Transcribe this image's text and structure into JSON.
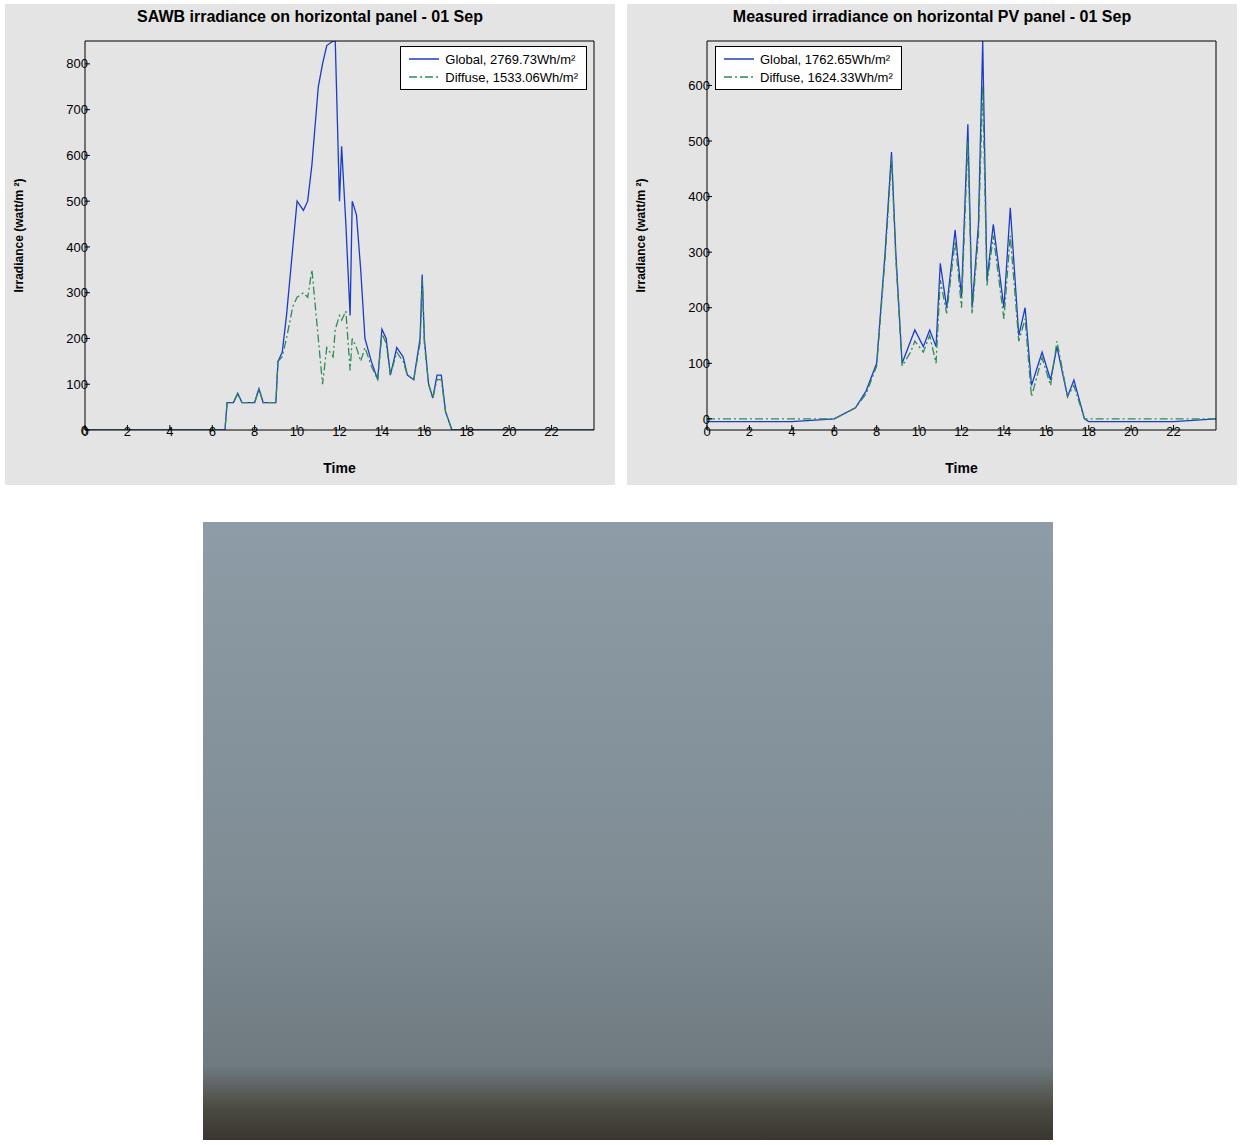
{
  "chart_data": [
    {
      "type": "line",
      "title": "SAWB irradiance on horizontal panel - 01 Sep",
      "x_label": "Time",
      "y_label": "Irradiance (watt/m ²)",
      "x": [
        0,
        6.6,
        6.7,
        7,
        7.2,
        7.4,
        8,
        8.2,
        8.4,
        9,
        9.1,
        9.3,
        9.5,
        9.8,
        10,
        10.3,
        10.5,
        10.7,
        11,
        11.2,
        11.4,
        11.7,
        11.8,
        12,
        12.1,
        12.3,
        12.5,
        12.6,
        12.8,
        13,
        13.2,
        13.5,
        13.8,
        14,
        14.2,
        14.4,
        14.7,
        15,
        15.2,
        15.5,
        15.8,
        15.9,
        16,
        16.2,
        16.4,
        16.6,
        16.8,
        17,
        17.3,
        24
      ],
      "series": [
        {
          "name": "Global, 2769.73Wh/m²",
          "color": "#1a3cc8",
          "line_style": "solid",
          "values": [
            0,
            0,
            60,
            60,
            80,
            60,
            60,
            90,
            60,
            60,
            150,
            170,
            250,
            400,
            500,
            480,
            500,
            580,
            750,
            800,
            840,
            850,
            850,
            500,
            620,
            450,
            250,
            500,
            470,
            350,
            200,
            150,
            110,
            220,
            200,
            120,
            180,
            160,
            120,
            110,
            200,
            340,
            200,
            100,
            70,
            120,
            120,
            40,
            0,
            0
          ]
        },
        {
          "name": "Diffuse, 1533.06Wh/m²",
          "color": "#2e8b57",
          "line_style": "dashdot",
          "values": [
            0,
            0,
            60,
            60,
            80,
            60,
            60,
            90,
            60,
            60,
            150,
            160,
            200,
            270,
            290,
            300,
            290,
            350,
            200,
            100,
            180,
            160,
            220,
            250,
            240,
            260,
            130,
            200,
            180,
            150,
            180,
            140,
            110,
            210,
            190,
            120,
            170,
            150,
            120,
            110,
            190,
            330,
            190,
            100,
            70,
            110,
            110,
            40,
            0,
            0
          ]
        }
      ],
      "xlim": [
        0,
        24
      ],
      "xticks": [
        0,
        2,
        4,
        6,
        8,
        10,
        12,
        14,
        16,
        18,
        20,
        22
      ],
      "ylim": [
        0,
        850
      ],
      "yticks": [
        0,
        100,
        200,
        300,
        400,
        500,
        600,
        700,
        800
      ],
      "grid": false,
      "legend": "upper right"
    },
    {
      "type": "line",
      "title": "Measured irradiance on horizontal PV panel - 01 Sep",
      "x_label": "Time",
      "y_label": "Irradiance (watt/m ²)",
      "x": [
        0,
        4,
        6,
        7,
        7.5,
        8,
        8.4,
        8.7,
        8.9,
        9.2,
        9.6,
        9.8,
        10.2,
        10.5,
        10.8,
        11,
        11.3,
        11.7,
        12,
        12.3,
        12.5,
        12.8,
        13,
        13.2,
        13.5,
        14,
        14.3,
        14.7,
        15,
        15.3,
        15.8,
        16.2,
        16.5,
        17,
        17.3,
        17.8,
        18,
        22,
        24
      ],
      "series": [
        {
          "name": "Global, 1762.65Wh/m²",
          "color": "#1a3cc8",
          "line_style": "solid",
          "values": [
            -5,
            -5,
            0,
            20,
            50,
            100,
            300,
            480,
            300,
            100,
            140,
            160,
            130,
            160,
            130,
            280,
            200,
            340,
            220,
            530,
            200,
            350,
            680,
            250,
            350,
            200,
            380,
            150,
            200,
            60,
            120,
            70,
            130,
            40,
            70,
            0,
            -5,
            -5,
            0
          ]
        },
        {
          "name": "Diffuse, 1624.33Wh/m²",
          "color": "#2e8b57",
          "line_style": "dashdot",
          "values": [
            0,
            0,
            0,
            20,
            45,
            95,
            290,
            470,
            290,
            95,
            120,
            140,
            120,
            150,
            100,
            250,
            190,
            320,
            200,
            500,
            190,
            330,
            600,
            240,
            330,
            180,
            330,
            140,
            180,
            40,
            110,
            60,
            140,
            40,
            60,
            0,
            0,
            0,
            0
          ]
        }
      ],
      "xlim": [
        0,
        24
      ],
      "xticks": [
        0,
        2,
        4,
        6,
        8,
        10,
        12,
        14,
        16,
        18,
        20,
        22
      ],
      "ylim": [
        -20,
        680
      ],
      "yticks": [
        0,
        100,
        200,
        300,
        400,
        500,
        600
      ],
      "grid": false,
      "legend": "upper left"
    }
  ]
}
